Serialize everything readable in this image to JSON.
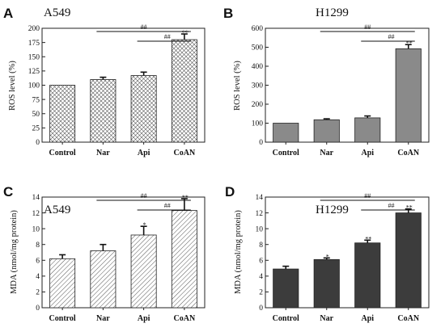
{
  "chart_data": [
    {
      "type": "bar",
      "panel": "A",
      "title": "A549",
      "ylabel": "ROS level (%)",
      "categories": [
        "Control",
        "Nar",
        "Api",
        "CoAN"
      ],
      "values": [
        100,
        110,
        117,
        180
      ],
      "errors": [
        0,
        4,
        6,
        10
      ],
      "ylim": [
        0,
        200
      ],
      "yticks": [
        "0",
        "25",
        "50",
        "75",
        "100",
        "125",
        "150",
        "175",
        "200"
      ],
      "fill": "crosshatch",
      "bar_color": "#ffffff",
      "marks": [
        "",
        "",
        "",
        "**"
      ],
      "brackets": [
        {
          "from": 1,
          "to": 3,
          "label": "##"
        },
        {
          "from": 2,
          "to": 3,
          "label": "##"
        }
      ]
    },
    {
      "type": "bar",
      "panel": "B",
      "title": "H1299",
      "ylabel": "ROS level (%)",
      "categories": [
        "Control",
        "Nar",
        "Api",
        "CoAN"
      ],
      "values": [
        100,
        118,
        128,
        492
      ],
      "errors": [
        0,
        5,
        10,
        22
      ],
      "ylim": [
        0,
        600
      ],
      "yticks": [
        "0",
        "100",
        "200",
        "300",
        "400",
        "500",
        "600"
      ],
      "fill": "solid",
      "bar_color": "#8a8a8a",
      "marks": [
        "",
        "",
        "",
        "**"
      ],
      "brackets": [
        {
          "from": 1,
          "to": 3,
          "label": "##"
        },
        {
          "from": 2,
          "to": 3,
          "label": "##"
        }
      ]
    },
    {
      "type": "bar",
      "panel": "C",
      "title": "A549",
      "ylabel": "MDA (nmol/mg protein)",
      "categories": [
        "Control",
        "Nar",
        "Api",
        "CoAN"
      ],
      "values": [
        6.2,
        7.2,
        9.2,
        12.3
      ],
      "errors": [
        0.5,
        0.8,
        1.1,
        1.5
      ],
      "ylim": [
        0,
        14
      ],
      "yticks": [
        "0",
        "2",
        "4",
        "6",
        "8",
        "10",
        "12",
        "14"
      ],
      "fill": "diagonal",
      "bar_color": "#ffffff",
      "marks": [
        "",
        "",
        "*",
        "**"
      ],
      "brackets": [
        {
          "from": 1,
          "to": 3,
          "label": "##"
        },
        {
          "from": 2,
          "to": 3,
          "label": "##"
        }
      ]
    },
    {
      "type": "bar",
      "panel": "D",
      "title": "H1299",
      "ylabel": "MDA (nmol/mg protein)",
      "categories": [
        "Control",
        "Nar",
        "Api",
        "CoAN"
      ],
      "values": [
        4.9,
        6.1,
        8.2,
        12.0
      ],
      "errors": [
        0.35,
        0.2,
        0.35,
        0.5
      ],
      "ylim": [
        0,
        14
      ],
      "yticks": [
        "0",
        "2",
        "4",
        "6",
        "8",
        "10",
        "12",
        "14"
      ],
      "fill": "solid",
      "bar_color": "#3c3c3c",
      "marks": [
        "",
        "*",
        "**",
        "**"
      ],
      "brackets": [
        {
          "from": 1,
          "to": 3,
          "label": "##"
        },
        {
          "from": 2,
          "to": 3,
          "label": "##"
        }
      ]
    }
  ]
}
